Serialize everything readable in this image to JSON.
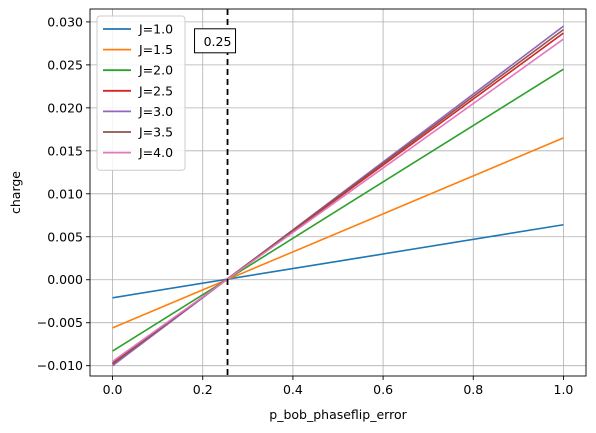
{
  "chart_data": {
    "type": "line",
    "xlabel": "p_bob_phaseflip_error",
    "ylabel": "charge",
    "xlim": [
      -0.05,
      1.05
    ],
    "ylim": [
      -0.0112,
      0.0315
    ],
    "xticks": [
      0.0,
      0.2,
      0.4,
      0.6,
      0.8,
      1.0
    ],
    "xtick_labels": [
      "0.0",
      "0.2",
      "0.4",
      "0.6",
      "0.8",
      "1.0"
    ],
    "yticks": [
      -0.01,
      -0.005,
      0.0,
      0.005,
      0.01,
      0.015,
      0.02,
      0.025,
      0.03
    ],
    "ytick_labels": [
      "−0.010",
      "−0.005",
      "0.000",
      "0.005",
      "0.010",
      "0.015",
      "0.020",
      "0.025",
      "0.030"
    ],
    "grid": true,
    "legend_position": "top-left",
    "vline": {
      "x": 0.255,
      "style": "dashed",
      "color": "#000000"
    },
    "annotation": {
      "text": "0.25",
      "x": 0.255,
      "y": 0.0278
    },
    "series": [
      {
        "name": "J=1.0",
        "color": "#1f77b4",
        "x": [
          0.0,
          1.0
        ],
        "y": [
          -0.0021,
          0.0064
        ]
      },
      {
        "name": "J=1.5",
        "color": "#ff7f0e",
        "x": [
          0.0,
          1.0
        ],
        "y": [
          -0.0056,
          0.0165
        ]
      },
      {
        "name": "J=2.0",
        "color": "#2ca02c",
        "x": [
          0.0,
          1.0
        ],
        "y": [
          -0.0083,
          0.0245
        ]
      },
      {
        "name": "J=2.5",
        "color": "#d62728",
        "x": [
          0.0,
          1.0
        ],
        "y": [
          -0.0097,
          0.0287
        ]
      },
      {
        "name": "J=3.0",
        "color": "#9467bd",
        "x": [
          0.0,
          1.0
        ],
        "y": [
          -0.01,
          0.0295
        ]
      },
      {
        "name": "J=3.5",
        "color": "#8c564b",
        "x": [
          0.0,
          1.0
        ],
        "y": [
          -0.0098,
          0.0291
        ]
      },
      {
        "name": "J=4.0",
        "color": "#e377c2",
        "x": [
          0.0,
          1.0
        ],
        "y": [
          -0.0095,
          0.028
        ]
      }
    ]
  }
}
